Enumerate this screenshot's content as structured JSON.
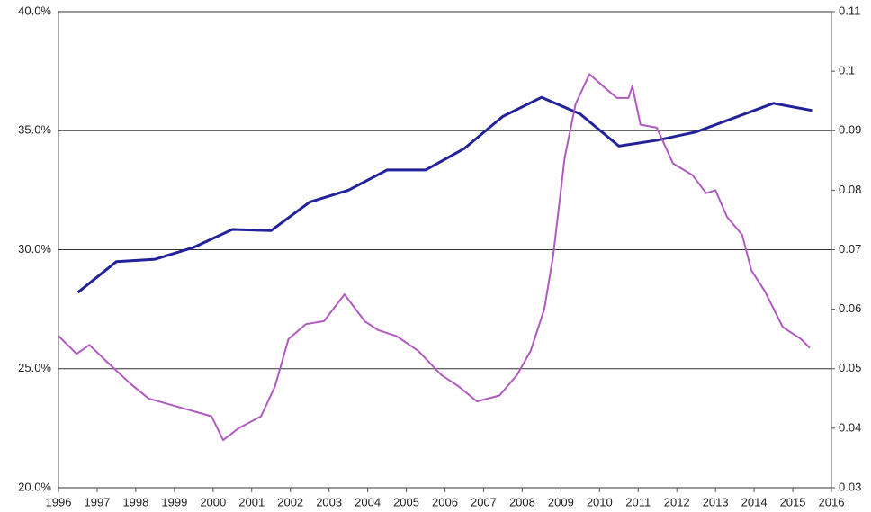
{
  "chart_data": {
    "type": "line",
    "x_ticks_note_free": null,
    "xlim": [
      1996,
      2016
    ],
    "xticks": [
      1996,
      1997,
      1998,
      1999,
      2000,
      2001,
      2002,
      2003,
      2004,
      2005,
      2006,
      2007,
      2008,
      2009,
      2010,
      2011,
      2012,
      2013,
      2014,
      2015,
      2016
    ],
    "ylim": [
      20,
      40
    ],
    "yticks": [
      {
        "value": 20,
        "label": "20.0%"
      },
      {
        "value": 25,
        "label": "25.0%"
      },
      {
        "value": 30,
        "label": "30.0%"
      },
      {
        "value": 35,
        "label": "35.0%"
      },
      {
        "value": 40,
        "label": "40.0%"
      }
    ],
    "y2lim": [
      0.03,
      0.11
    ],
    "y2ticks": [
      0.03,
      0.04,
      0.05,
      0.06,
      0.07,
      0.08,
      0.09,
      0.1,
      0.11
    ],
    "grid": true,
    "series": [
      {
        "color": "#22229a",
        "axis": "y",
        "x": [
          1996.5,
          1997.5,
          1998.5,
          1999.5,
          2000.5,
          2001.5,
          2002.5,
          2003.5,
          2004.5,
          2005.5,
          2006.5,
          2007.5,
          2008.5,
          2009.5,
          2010.5,
          2011.5,
          2012.5,
          2013.5,
          2014.5,
          2015.5
        ],
        "values": [
          28.2,
          29.5,
          29.6,
          30.1,
          30.85,
          30.8,
          32.0,
          32.5,
          33.35,
          33.35,
          34.25,
          35.6,
          36.4,
          35.7,
          34.35,
          34.6,
          34.95,
          35.55,
          36.15,
          35.85
        ]
      },
      {
        "color": "#b05ac0",
        "axis": "y2",
        "x": [
          1996.0,
          1996.47,
          1996.8,
          1997.28,
          1997.86,
          1998.33,
          1999.14,
          1999.96,
          2000.26,
          2000.66,
          2001.24,
          2001.6,
          2001.95,
          2002.4,
          2002.87,
          2003.4,
          2003.92,
          2004.27,
          2004.74,
          2005.31,
          2005.9,
          2006.36,
          2006.83,
          2007.41,
          2007.87,
          2008.22,
          2008.57,
          2008.8,
          2009.1,
          2009.38,
          2009.74,
          2010.09,
          2010.45,
          2010.75,
          2010.85,
          2011.06,
          2011.48,
          2011.9,
          2012.41,
          2012.76,
          2013.0,
          2013.3,
          2013.69,
          2013.93,
          2014.28,
          2014.74,
          2015.21,
          2015.44
        ],
        "values": [
          0.0555,
          0.0525,
          0.054,
          0.051,
          0.0475,
          0.045,
          0.0435,
          0.042,
          0.038,
          0.04,
          0.042,
          0.047,
          0.055,
          0.0575,
          0.058,
          0.0625,
          0.058,
          0.0565,
          0.0555,
          0.053,
          0.049,
          0.047,
          0.0445,
          0.0455,
          0.049,
          0.053,
          0.06,
          0.069,
          0.0855,
          0.0945,
          0.0995,
          0.0975,
          0.0955,
          0.0955,
          0.0975,
          0.091,
          0.0905,
          0.0845,
          0.0825,
          0.0795,
          0.08,
          0.0755,
          0.0725,
          0.0665,
          0.063,
          0.057,
          0.055,
          0.0535
        ]
      }
    ]
  }
}
